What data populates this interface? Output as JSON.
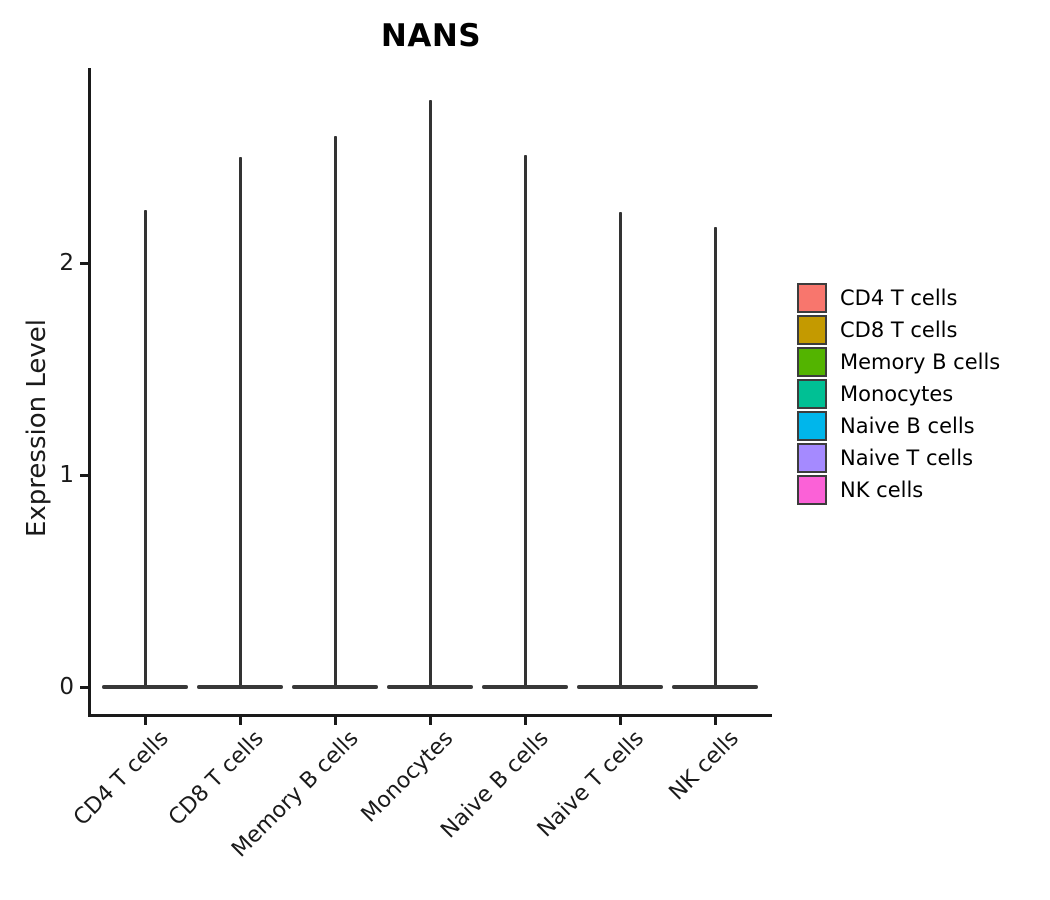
{
  "chart": {
    "title": "NANS",
    "y_axis_label": "Expression Level"
  },
  "chart_data": {
    "type": "violin",
    "title": "NANS",
    "xlabel": "",
    "ylabel": "Expression Level",
    "yticks": [
      0,
      1,
      2
    ],
    "ylim": [
      -0.1,
      2.9
    ],
    "grid": false,
    "legend_position": "right",
    "x_tick_label_rotation_degrees": 45,
    "outline_color": "#333333",
    "shape_note": "Each distribution is concentrated at 0 (wide flat base) with a very thin spike extending up to the maximum expression value.",
    "categories": [
      "CD4 T cells",
      "CD8 T cells",
      "Memory B cells",
      "Monocytes",
      "Naive B cells",
      "Naive T cells",
      "NK cells"
    ],
    "violins": [
      {
        "category": "CD4 T cells",
        "color": "#F8766D",
        "max_expression": 2.25,
        "mode_expression": 0
      },
      {
        "category": "CD8 T cells",
        "color": "#C49A00",
        "max_expression": 2.5,
        "mode_expression": 0
      },
      {
        "category": "Memory B cells",
        "color": "#53B400",
        "max_expression": 2.6,
        "mode_expression": 0
      },
      {
        "category": "Monocytes",
        "color": "#00C094",
        "max_expression": 2.77,
        "mode_expression": 0
      },
      {
        "category": "Naive B cells",
        "color": "#00B6EB",
        "max_expression": 2.51,
        "mode_expression": 0
      },
      {
        "category": "Naive T cells",
        "color": "#A58AFF",
        "max_expression": 2.24,
        "mode_expression": 0
      },
      {
        "category": "NK cells",
        "color": "#FB61D7",
        "max_expression": 2.17,
        "mode_expression": 0
      }
    ],
    "legend_entries": [
      {
        "label": "CD4 T cells",
        "color": "#F8766D"
      },
      {
        "label": "CD8 T cells",
        "color": "#C49A00"
      },
      {
        "label": "Memory B cells",
        "color": "#53B400"
      },
      {
        "label": "Monocytes",
        "color": "#00C094"
      },
      {
        "label": "Naive B cells",
        "color": "#00B6EB"
      },
      {
        "label": "Naive T cells",
        "color": "#A58AFF"
      },
      {
        "label": "NK cells",
        "color": "#FB61D7"
      }
    ]
  }
}
